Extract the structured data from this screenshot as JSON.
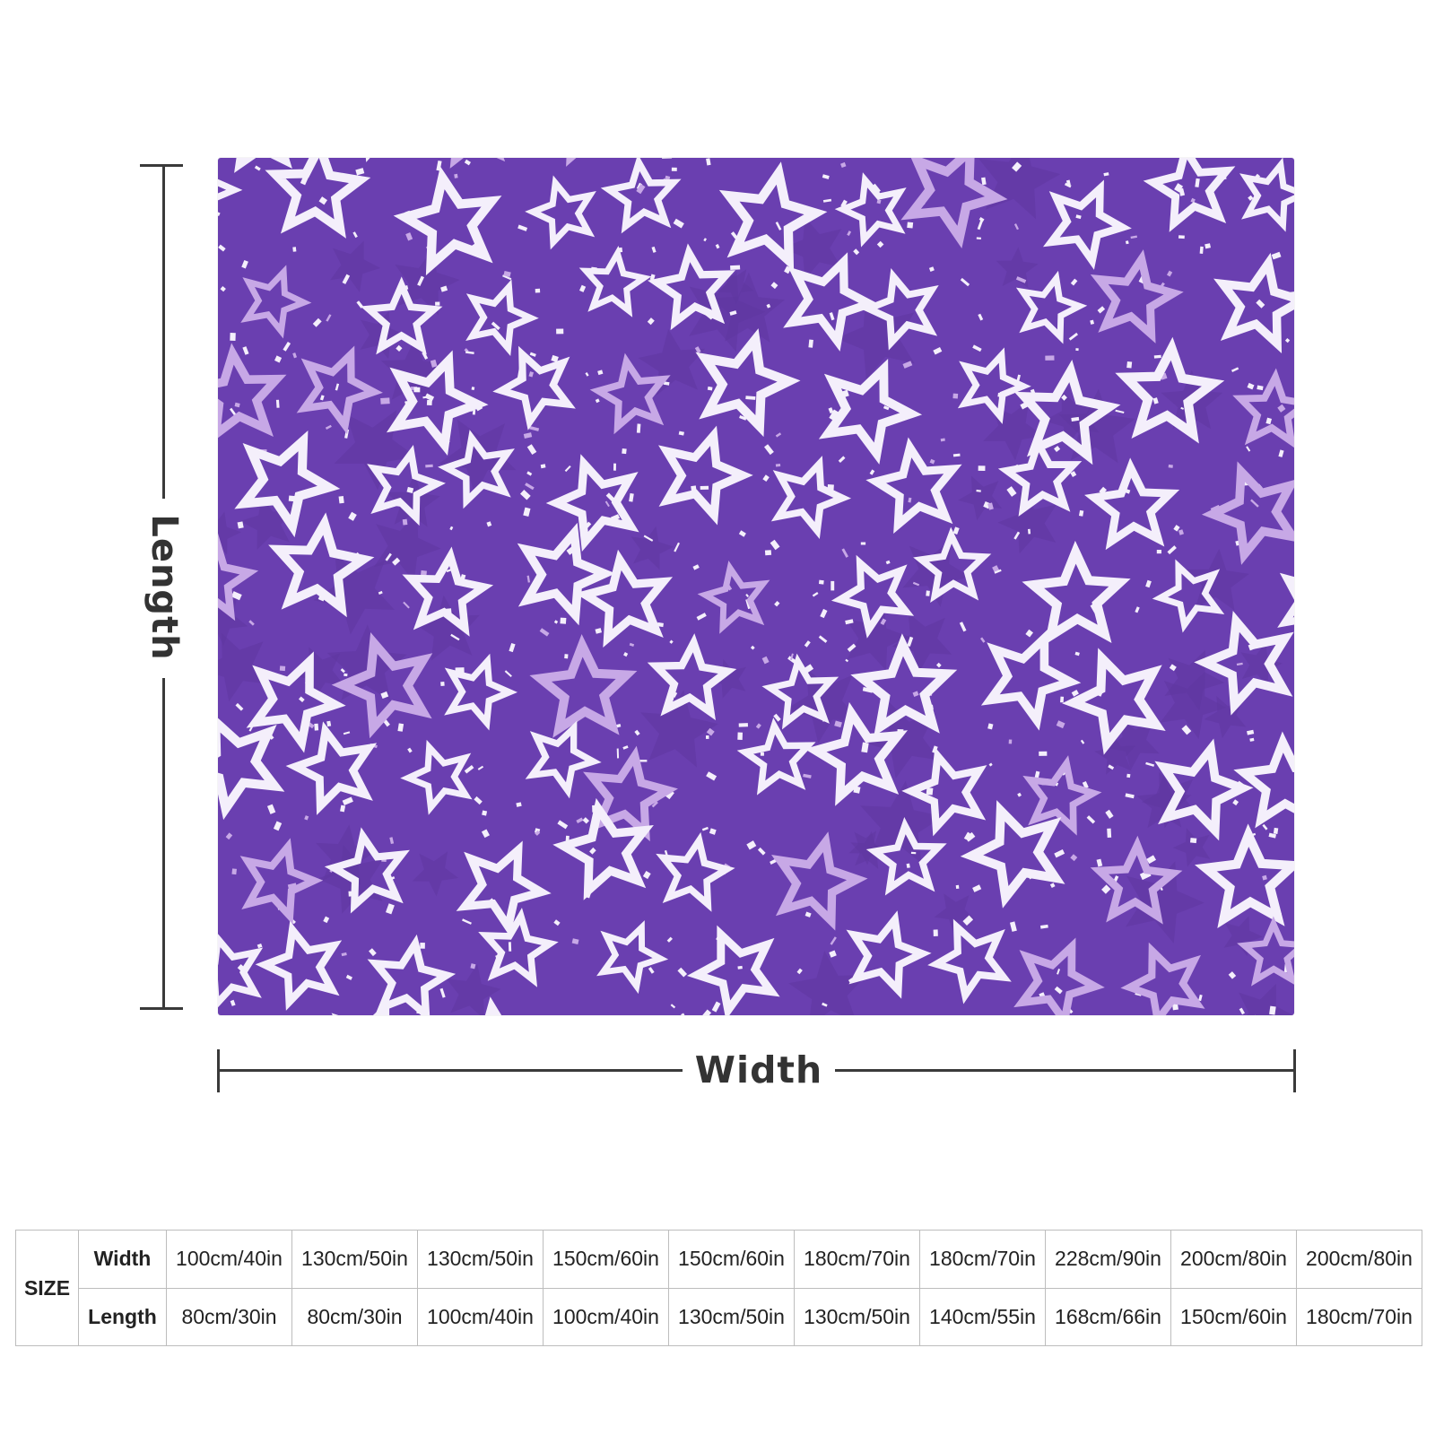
{
  "product": {
    "name": "throw-blanket",
    "pattern": "white-and-lilac-stars-on-purple",
    "colors": {
      "background": "#6a3fb0",
      "star_white": "#f4effb",
      "star_lilac": "#c7a8e6",
      "dark_star": "#5e36a1"
    }
  },
  "dimensions": {
    "length_label": "Length",
    "width_label": "Width"
  },
  "size_table": {
    "header": "SIZE",
    "row_labels": {
      "width": "Width",
      "length": "Length"
    },
    "widths": [
      "100cm/40in",
      "130cm/50in",
      "130cm/50in",
      "150cm/60in",
      "150cm/60in",
      "180cm/70in",
      "180cm/70in",
      "228cm/90in",
      "200cm/80in",
      "200cm/80in"
    ],
    "lengths": [
      "80cm/30in",
      "80cm/30in",
      "100cm/40in",
      "100cm/40in",
      "130cm/50in",
      "130cm/50in",
      "140cm/55in",
      "168cm/66in",
      "150cm/60in",
      "180cm/70in"
    ]
  }
}
